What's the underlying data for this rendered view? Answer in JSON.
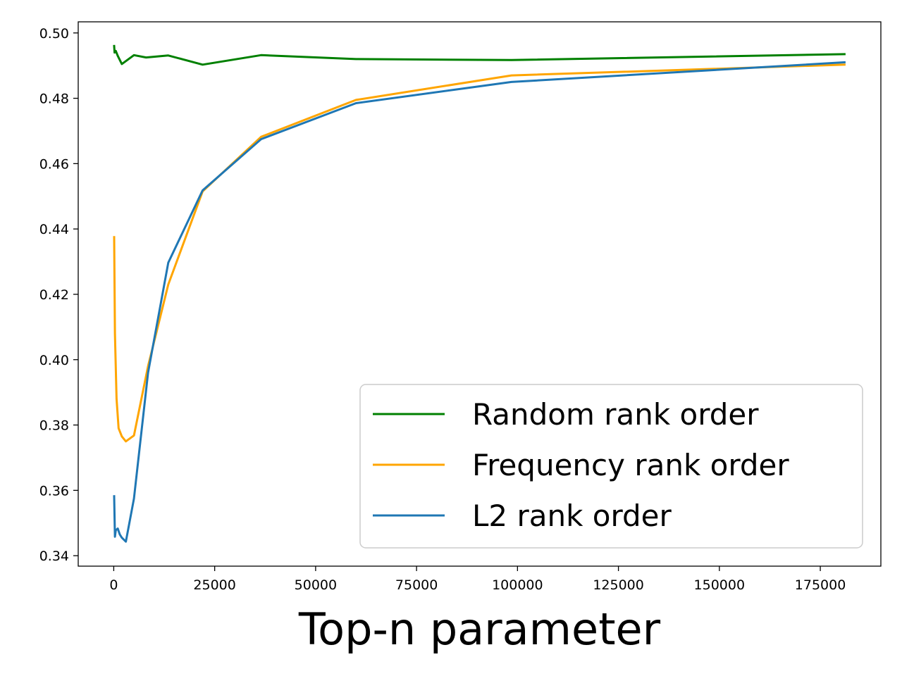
{
  "chart_data": {
    "type": "line",
    "xlabel": "Top-n parameter",
    "ylabel": "",
    "xlim": [
      -8800,
      190000
    ],
    "ylim": [
      0.3368,
      0.5034
    ],
    "x_ticks": [
      0,
      25000,
      50000,
      75000,
      100000,
      125000,
      150000,
      175000
    ],
    "y_ticks": [
      0.34,
      0.36,
      0.38,
      0.4,
      0.42,
      0.44,
      0.46,
      0.48,
      0.5
    ],
    "x_tick_labels": [
      "0",
      "25000",
      "50000",
      "75000",
      "100000",
      "125000",
      "150000",
      "175000"
    ],
    "y_tick_labels": [
      "0.34",
      "0.36",
      "0.38",
      "0.40",
      "0.42",
      "0.44",
      "0.46",
      "0.48",
      "0.50"
    ],
    "grid": false,
    "legend_position": "lower-right",
    "series": [
      {
        "name": "Random rank order",
        "color": "#008000",
        "x": [
          100,
          200,
          500,
          1000,
          2000,
          5000,
          8000,
          13500,
          22000,
          36500,
          60000,
          98500,
          181000
        ],
        "y": [
          0.496,
          0.494,
          0.4945,
          0.493,
          0.4905,
          0.4932,
          0.4925,
          0.4931,
          0.4903,
          0.4932,
          0.492,
          0.4917,
          0.4935
        ]
      },
      {
        "name": "Frequency rank order",
        "color": "#FFA500",
        "x": [
          100,
          300,
          700,
          1200,
          2000,
          3000,
          5000,
          8500,
          13500,
          22000,
          36500,
          60000,
          98500,
          181000
        ],
        "y": [
          0.4375,
          0.408,
          0.388,
          0.379,
          0.3765,
          0.375,
          0.3768,
          0.398,
          0.423,
          0.4515,
          0.4682,
          0.4795,
          0.487,
          0.4903
        ]
      },
      {
        "name": "L2 rank order",
        "color": "#1F77B4",
        "x": [
          100,
          300,
          500,
          1000,
          1500,
          2000,
          3000,
          5000,
          8500,
          13500,
          22000,
          36500,
          60000,
          98500,
          181000
        ],
        "y": [
          0.3582,
          0.3458,
          0.3478,
          0.3483,
          0.3465,
          0.3455,
          0.3443,
          0.3575,
          0.396,
          0.4297,
          0.4518,
          0.4675,
          0.4785,
          0.485,
          0.491
        ]
      }
    ]
  }
}
